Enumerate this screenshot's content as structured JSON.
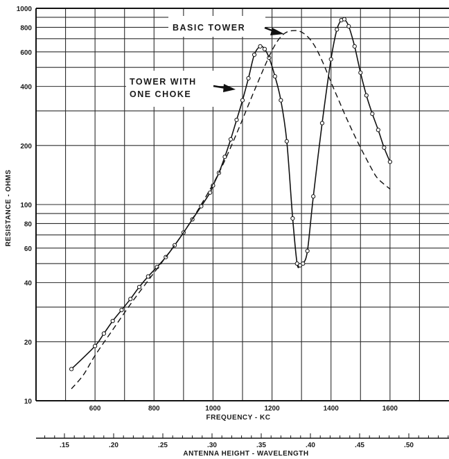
{
  "chart_data": {
    "type": "line",
    "x_axis": {
      "label": "FREQUENCY - KC",
      "ticks": [
        "600",
        "800",
        "1000",
        "1200",
        "1400",
        "1600"
      ],
      "range": [
        400,
        1800
      ]
    },
    "x2_axis": {
      "label": "ANTENNA HEIGHT - WAVELENGTH",
      "ticks": [
        ".15",
        ".20",
        ".25",
        ".30",
        ".35",
        ".40",
        ".45",
        ".50"
      ],
      "tick_values": [
        0.15,
        0.2,
        0.25,
        0.3,
        0.35,
        0.4,
        0.45,
        0.5
      ]
    },
    "y_axis": {
      "label": "RESISTANCE - OHMS",
      "scale": "log",
      "range": [
        10,
        1000
      ],
      "ticks": [
        "10",
        "20",
        "40",
        "60",
        "80",
        "100",
        "200",
        "400",
        "600",
        "800",
        "1000"
      ]
    },
    "grid": true,
    "series": [
      {
        "name": "TOWER WITH ONE CHOKE",
        "style": "solid-with-circles",
        "points": [
          [
            520,
            14.5
          ],
          [
            600,
            19
          ],
          [
            630,
            22
          ],
          [
            660,
            25.5
          ],
          [
            690,
            29
          ],
          [
            720,
            33
          ],
          [
            750,
            38
          ],
          [
            780,
            43
          ],
          [
            810,
            48
          ],
          [
            840,
            54
          ],
          [
            870,
            62
          ],
          [
            900,
            72
          ],
          [
            930,
            84
          ],
          [
            960,
            98
          ],
          [
            990,
            115
          ],
          [
            1000,
            125
          ],
          [
            1020,
            145
          ],
          [
            1040,
            175
          ],
          [
            1060,
            215
          ],
          [
            1080,
            270
          ],
          [
            1100,
            340
          ],
          [
            1120,
            440
          ],
          [
            1140,
            580
          ],
          [
            1160,
            640
          ],
          [
            1175,
            620
          ],
          [
            1190,
            560
          ],
          [
            1210,
            450
          ],
          [
            1230,
            340
          ],
          [
            1250,
            210
          ],
          [
            1270,
            85
          ],
          [
            1285,
            50
          ],
          [
            1295,
            49
          ],
          [
            1305,
            50
          ],
          [
            1320,
            58
          ],
          [
            1340,
            110
          ],
          [
            1370,
            260
          ],
          [
            1400,
            550
          ],
          [
            1420,
            780
          ],
          [
            1435,
            870
          ],
          [
            1445,
            880
          ],
          [
            1460,
            810
          ],
          [
            1480,
            640
          ],
          [
            1500,
            470
          ],
          [
            1520,
            360
          ],
          [
            1540,
            290
          ],
          [
            1560,
            240
          ],
          [
            1580,
            195
          ],
          [
            1600,
            165
          ]
        ]
      },
      {
        "name": "BASIC TOWER",
        "style": "dashed",
        "points": [
          [
            520,
            11.5
          ],
          [
            560,
            13.5
          ],
          [
            600,
            17
          ],
          [
            660,
            23
          ],
          [
            720,
            31
          ],
          [
            780,
            41
          ],
          [
            840,
            54
          ],
          [
            900,
            72
          ],
          [
            960,
            100
          ],
          [
            1020,
            145
          ],
          [
            1080,
            230
          ],
          [
            1140,
            380
          ],
          [
            1200,
            610
          ],
          [
            1240,
            740
          ],
          [
            1280,
            770
          ],
          [
            1310,
            740
          ],
          [
            1340,
            660
          ],
          [
            1370,
            540
          ],
          [
            1400,
            420
          ],
          [
            1430,
            330
          ],
          [
            1460,
            260
          ],
          [
            1500,
            195
          ],
          [
            1540,
            150
          ],
          [
            1560,
            135
          ],
          [
            1600,
            120
          ]
        ]
      }
    ],
    "annotations": [
      {
        "text": "BASIC TOWER",
        "points_to": [
          1240,
          740
        ]
      },
      {
        "text_lines": [
          "TOWER WITH",
          "ONE  CHOKE"
        ],
        "points_to": [
          1040,
          430
        ]
      }
    ]
  }
}
